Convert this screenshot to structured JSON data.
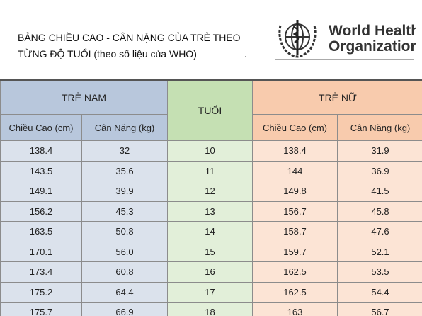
{
  "header": {
    "title_lines": [
      "BẢNG CHIỀU CAO - CÂN NẶNG CỦA TRẺ THEO",
      "TỪNG ĐỘ TUỔI (theo số liệu của WHO)"
    ],
    "dot": ".",
    "logo_lines": [
      "World Health",
      "Organization"
    ]
  },
  "table": {
    "groups": [
      "TRẺ NAM",
      "TUỔI",
      "TRẺ NỮ"
    ],
    "subheaders": [
      "Chiều Cao (cm)",
      "Cân Nặng (kg)",
      "Chiều Cao (cm)",
      "Cân Nặng (kg)"
    ],
    "rows": [
      [
        "138.4",
        "32",
        "10",
        "138.4",
        "31.9"
      ],
      [
        "143.5",
        "35.6",
        "11",
        "144",
        "36.9"
      ],
      [
        "149.1",
        "39.9",
        "12",
        "149.8",
        "41.5"
      ],
      [
        "156.2",
        "45.3",
        "13",
        "156.7",
        "45.8"
      ],
      [
        "163.5",
        "50.8",
        "14",
        "158.7",
        "47.6"
      ],
      [
        "170.1",
        "56.0",
        "15",
        "159.7",
        "52.1"
      ],
      [
        "173.4",
        "60.8",
        "16",
        "162.5",
        "53.5"
      ],
      [
        "175.2",
        "64.4",
        "17",
        "162.5",
        "54.4"
      ],
      [
        "175.7",
        "66.9",
        "18",
        "163",
        "56.7"
      ]
    ]
  }
}
